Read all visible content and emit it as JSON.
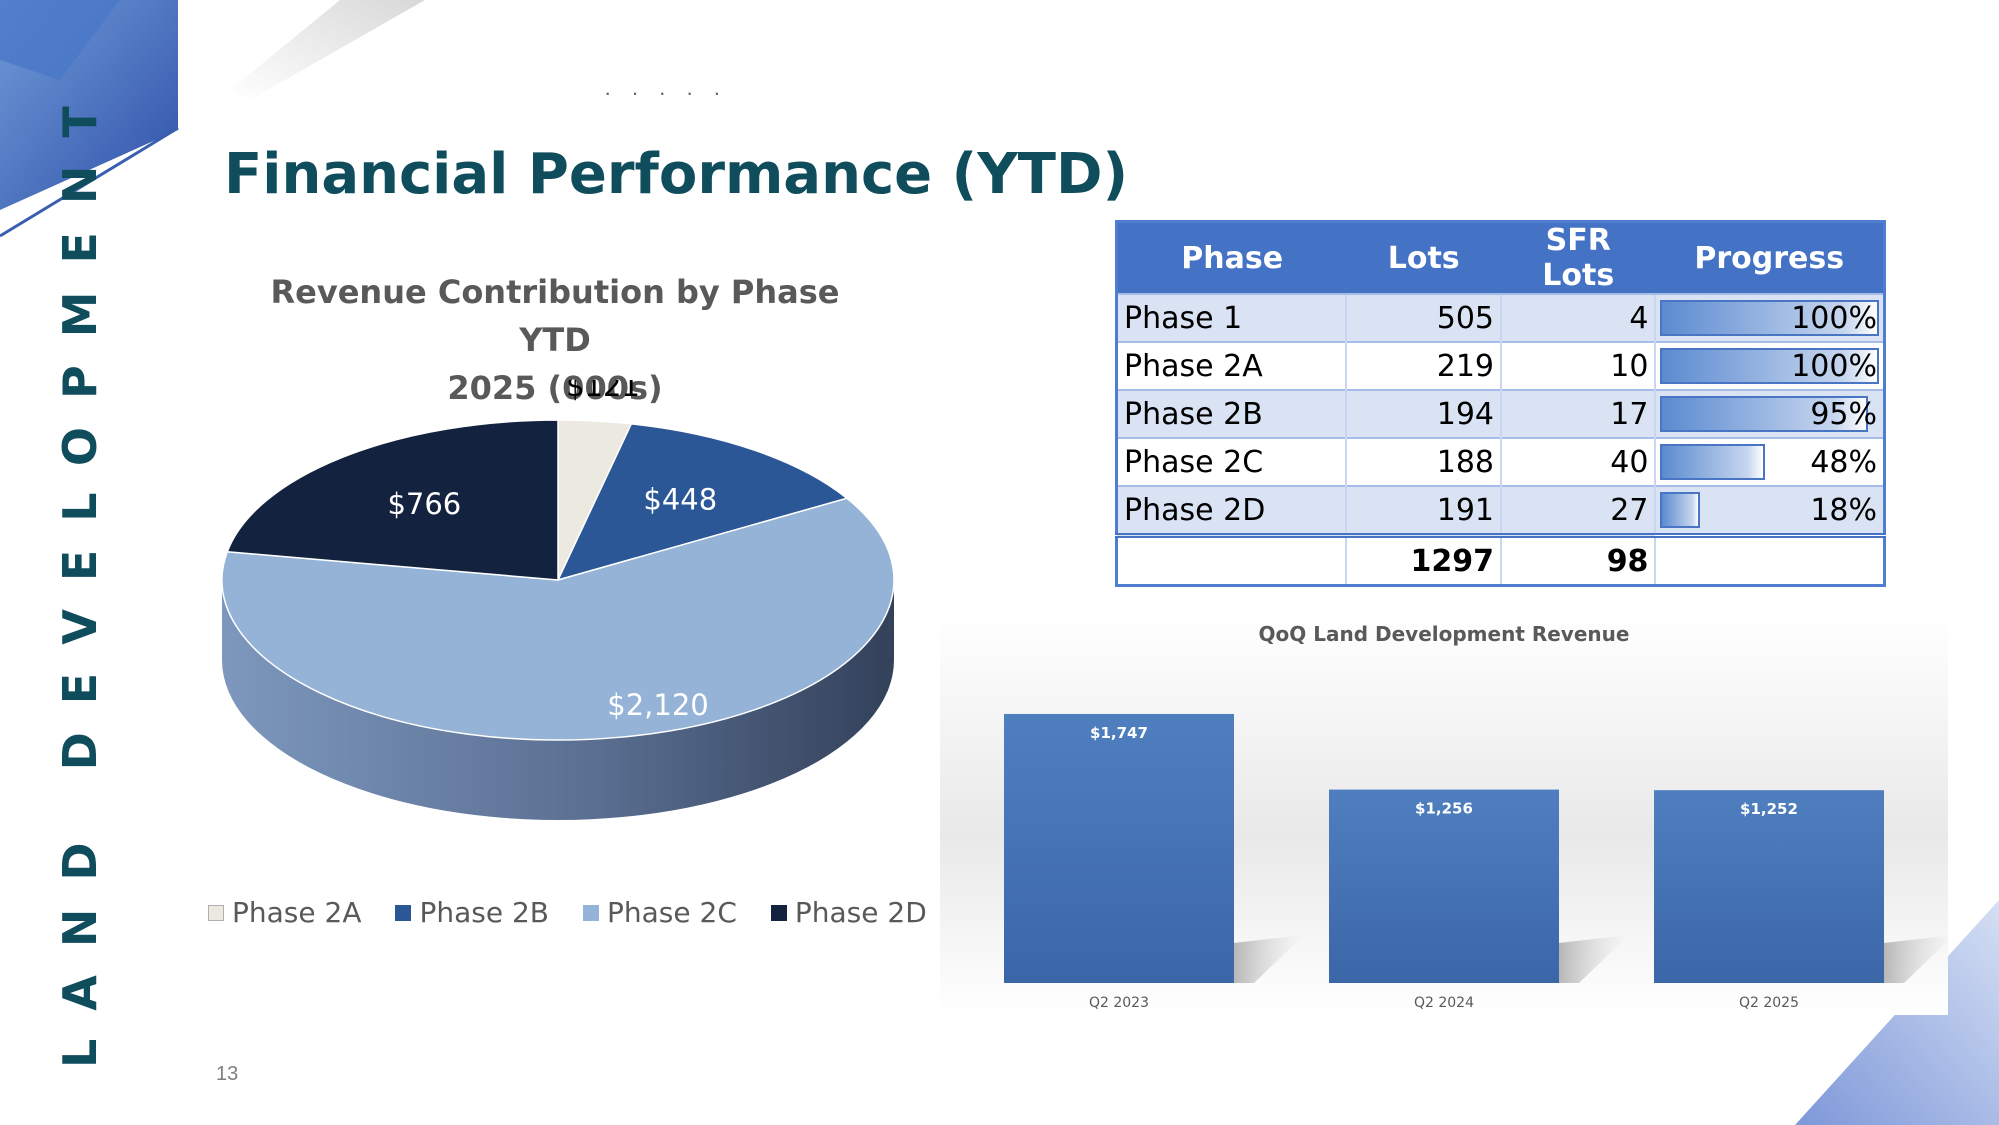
{
  "sidebar": {
    "vertical_title": "LAND DEVELOPMENT"
  },
  "header": {
    "title": "Financial Performance (YTD)"
  },
  "footer": {
    "page_number": "13"
  },
  "colors": {
    "title": "#0f4c5c",
    "accent_blue": "#4472c4",
    "table_band": "#dae3f3"
  },
  "pie": {
    "title_line1": "Revenue Contribution by Phase YTD",
    "title_line2": "2025 (000s)"
  },
  "table": {
    "headers": [
      "Phase",
      "Lots",
      "SFR Lots",
      "Progress"
    ],
    "rows": [
      {
        "phase": "Phase 1",
        "lots": "505",
        "sfr_lots": "4",
        "progress": "100%",
        "progress_value": 1.0
      },
      {
        "phase": "Phase 2A",
        "lots": "219",
        "sfr_lots": "10",
        "progress": "100%",
        "progress_value": 1.0
      },
      {
        "phase": "Phase 2B",
        "lots": "194",
        "sfr_lots": "17",
        "progress": "95%",
        "progress_value": 0.95
      },
      {
        "phase": "Phase 2C",
        "lots": "188",
        "sfr_lots": "40",
        "progress": "48%",
        "progress_value": 0.48
      },
      {
        "phase": "Phase 2D",
        "lots": "191",
        "sfr_lots": "27",
        "progress": "18%",
        "progress_value": 0.18
      }
    ],
    "total": {
      "lots": "1297",
      "sfr_lots": "98"
    }
  },
  "chart_data": [
    {
      "type": "pie",
      "title": "Revenue Contribution by Phase YTD 2025 (000s)",
      "categories": [
        "Phase 2A",
        "Phase 2B",
        "Phase 2C",
        "Phase 2D"
      ],
      "values": [
        121,
        448,
        2120,
        766
      ],
      "labels": [
        "$121",
        "$448",
        "$2,120",
        "$766"
      ],
      "colors": [
        "#ece9e1",
        "#2b5797",
        "#95b3d7",
        "#13223f"
      ],
      "legend": "bottom"
    },
    {
      "type": "bar",
      "title": "QoQ Land Development Revenue",
      "categories": [
        "Q2 2023",
        "Q2 2024",
        "Q2 2025"
      ],
      "values": [
        1747,
        1256,
        1252
      ],
      "labels": [
        "$1,747",
        "$1,256",
        "$1,252"
      ],
      "xlabel": "",
      "ylabel": "",
      "grid": false
    }
  ]
}
